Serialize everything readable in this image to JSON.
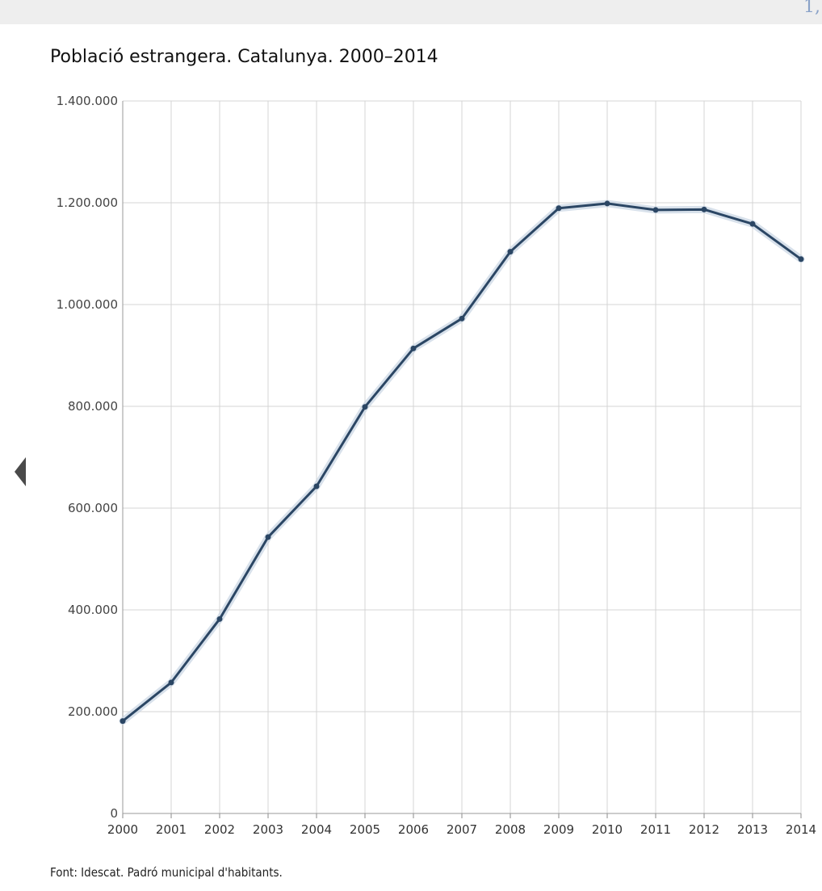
{
  "chart_data": {
    "type": "line",
    "title": "Població estrangera. Catalunya. 2000–2014",
    "xlabel": "",
    "ylabel": "",
    "categories": [
      "2000",
      "2001",
      "2002",
      "2003",
      "2004",
      "2005",
      "2006",
      "2007",
      "2008",
      "2009",
      "2010",
      "2011",
      "2012",
      "2013",
      "2014"
    ],
    "series": [
      {
        "values": [
          181590,
          257320,
          382020,
          543008,
          642846,
          798904,
          913757,
          972507,
          1103790,
          1189279,
          1198538,
          1185852,
          1186779,
          1158472,
          1089214
        ]
      }
    ],
    "ylim": [
      0,
      1400000
    ],
    "yticks": [
      "0",
      "200.000",
      "400.000",
      "600.000",
      "800.000",
      "1.000.000",
      "1.200.000",
      "1.400.000"
    ],
    "grid": true,
    "legend": "none",
    "line_color": "#2b4664"
  },
  "source_note": "Font: Idescat. Padró municipal d'habitants.",
  "corner_mark": "1,",
  "icons": {
    "prev": "chevron-left-icon"
  }
}
